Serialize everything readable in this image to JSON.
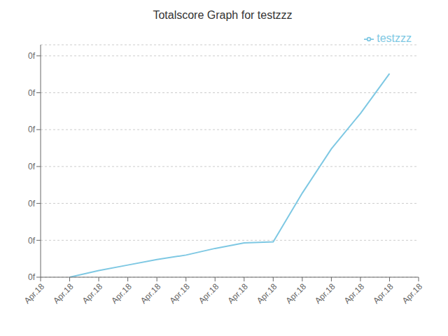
{
  "chart_data": {
    "type": "line",
    "title": "Totalscore Graph for testzzz",
    "categories": [
      "Apr.18",
      "Apr.18",
      "Apr.18",
      "Apr.18",
      "Apr.18",
      "Apr.18",
      "Apr.18",
      "Apr.18",
      "Apr.18",
      "Apr.18",
      "Apr.18",
      "Apr.18",
      "Apr.18",
      "Apr.18"
    ],
    "series": [
      {
        "name": "testzzz",
        "color": "#7ec8e3",
        "values": [
          null,
          0.0,
          0.03,
          0.055,
          0.08,
          0.1,
          0.13,
          0.155,
          0.16,
          0.38,
          0.58,
          0.74,
          0.92,
          null
        ]
      }
    ],
    "ylim": [
      0,
      1.05
    ],
    "yticks": [
      {
        "value": 0,
        "label": "0f"
      },
      {
        "value": 0.16666666666666666,
        "label": "0f"
      },
      {
        "value": 0.3333333333333333,
        "label": "0f"
      },
      {
        "value": 0.5,
        "label": "0f"
      },
      {
        "value": 0.6666666666666666,
        "label": "0f"
      },
      {
        "value": 0.8333333333333333,
        "label": "0f"
      },
      {
        "value": 1.0,
        "label": "0f"
      }
    ],
    "grid": true,
    "legend": "upper right"
  }
}
